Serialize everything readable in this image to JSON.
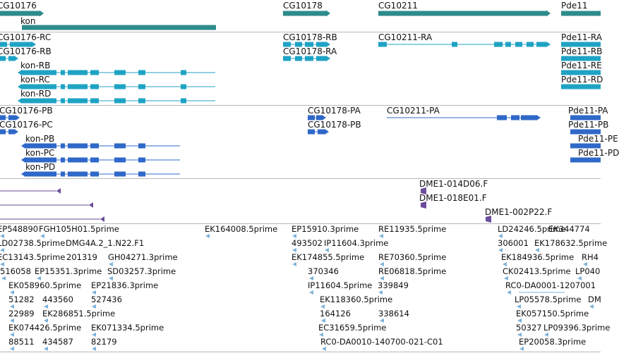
{
  "colors": {
    "gene": "#2e8b8b",
    "transcript": "#1fa3c4",
    "protein": "#2f68c8",
    "probe": "#6b4c9a",
    "est": "#7bb3da",
    "divider": "#b8b8b8"
  },
  "tracks": {
    "genes": [
      "CG10176",
      "kon",
      "CG10178",
      "CG10211",
      "Pde11"
    ],
    "transcripts": [
      "CG10176-RC",
      "CG10176-RB",
      "kon-RB",
      "kon-RC",
      "kon-RD",
      "CG10178-RB",
      "CG10178-RA",
      "CG10211-RA",
      "Pde11-RA",
      "Pde11-RB",
      "Pde11-RE",
      "Pde11-RD"
    ],
    "proteins": [
      "CG10176-PB",
      "CG10176-PC",
      "kon-PB",
      "kon-PC",
      "kon-PD",
      "CG10178-PA",
      "CG10178-PB",
      "CG10211-PA",
      "Pde11-PA",
      "Pde11-PB",
      "Pde11-PE",
      "Pde11-PD"
    ],
    "probes": [
      "DME1-014D06.F",
      "DME1-018E01.F",
      "DME1-002P22.F"
    ],
    "ests": [
      "EP548890",
      "FGH105H01.5prime",
      "EK164008.5prime",
      "EP15910.3prime",
      "RE11935.5prime",
      "LD24246.5prime",
      "EK344774",
      "LD02738.5prime",
      "DMG4A.2_1.N22.F1",
      "493502",
      "IP11604.3prime",
      "306001",
      "EK178632.5prime",
      "EC13143.5prime",
      "201319",
      "GH04271.3prime",
      "EK174855.5prime",
      "RE70360.5prime",
      "EK184936.5prime",
      "RH4",
      "516058",
      "EP15351.3prime",
      "SD03257.3prime",
      "370346",
      "RE06818.5prime",
      "CK02413.5prime",
      "LP040",
      "EK058960.5prime",
      "EP21836.3prime",
      "IP11604.5prime",
      "339849",
      "RC0-DA0001-1207001",
      "51282",
      "443560",
      "527436",
      "EK118360.5prime",
      "LP05578.5prime",
      "DM",
      "22989",
      "EK286851.5prime",
      "164126",
      "338614",
      "EK057150.5prime",
      "EK074426.5prime",
      "EK071334.5prime",
      "EC31659.5prime",
      "50327",
      "LP09396.3prime",
      "88511",
      "434587",
      "82179",
      "RC0-DA0010-140700-021-C01",
      "EP20058.3prime"
    ]
  }
}
